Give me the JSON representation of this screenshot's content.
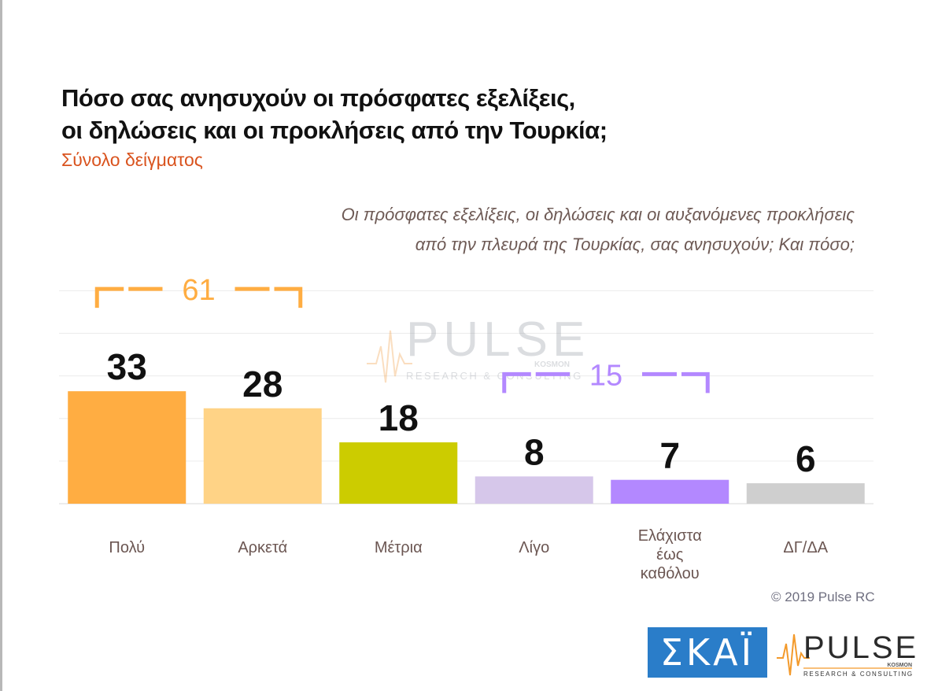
{
  "header": {
    "title_line1": "Πόσο σας ανησυχούν οι πρόσφατες εξελίξεις,",
    "title_line2": "οι δηλώσεις και οι προκλήσεις από την Τουρκία;",
    "subtitle": "Σύνολο δείγματος",
    "question_line1": "Οι πρόσφατες εξελίξεις, οι δηλώσεις και οι αυξανόμενες προκλήσεις",
    "question_line2": "από την πλευρά της Τουρκίας, σας ανησυχούν; Και πόσο;"
  },
  "chart_data": {
    "type": "bar",
    "categories": [
      "Πολύ",
      "Αρκετά",
      "Μέτρια",
      "Λίγο",
      "Ελάχιστα έως καθόλου",
      "ΔΓ/ΔΑ"
    ],
    "category_lines": [
      [
        "Πολύ"
      ],
      [
        "Αρκετά"
      ],
      [
        "Μέτρια"
      ],
      [
        "Λίγο"
      ],
      [
        "Ελάχιστα",
        "έως",
        "καθόλου"
      ],
      [
        "ΔΓ/ΔΑ"
      ]
    ],
    "values": [
      33,
      28,
      18,
      8,
      7,
      6
    ],
    "colors": [
      "#ffad42",
      "#ffd386",
      "#cccc00",
      "#d6c7ea",
      "#b388ff",
      "#cfcfcf"
    ],
    "ylim": [
      0,
      70
    ],
    "grid": true,
    "groups": [
      {
        "label": "61",
        "from": 0,
        "to": 1,
        "color": "#ffad42"
      },
      {
        "label": "15",
        "from": 3,
        "to": 4,
        "color": "#b388ff"
      }
    ]
  },
  "watermark": {
    "brand": "PULSE",
    "sub": "RESEARCH & CONSULTING",
    "partner": "KOSMON"
  },
  "footer": {
    "copyright": "© 2019 Pulse RC",
    "skai_logo_text": "ΣΚΑΪ",
    "pulse_logo_text": "PULSE",
    "pulse_logo_sub": "RESEARCH & CONSULTING",
    "pulse_logo_partner": "KOSMON"
  }
}
